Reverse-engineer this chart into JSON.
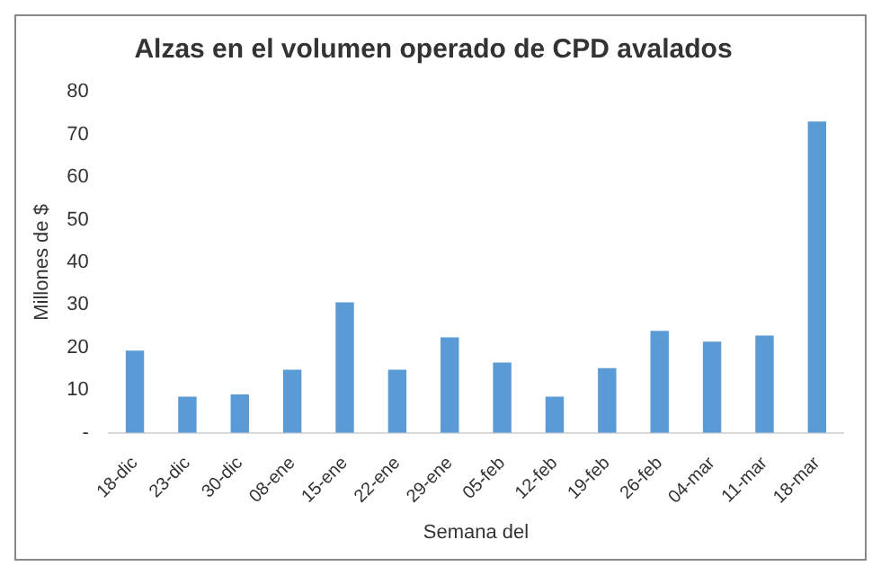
{
  "chart_data": {
    "type": "bar",
    "title": "Alzas en el volumen operado de CPD avalados",
    "xlabel": "Semana del",
    "ylabel": "Millones de $",
    "categories": [
      "18-dic",
      "23-dic",
      "30-dic",
      "08-ene",
      "15-ene",
      "22-ene",
      "29-ene",
      "05-feb",
      "12-feb",
      "19-feb",
      "26-feb",
      "04-mar",
      "11-mar",
      "18-mar"
    ],
    "values": [
      19.3,
      8.5,
      9.0,
      14.8,
      30.6,
      14.8,
      22.4,
      16.5,
      8.5,
      15.2,
      23.9,
      21.4,
      22.8,
      73.0
    ],
    "color": "#5b9bd5",
    "ylim": [
      0,
      80
    ],
    "yticks": [
      {
        "value": 0,
        "label": "-"
      },
      10,
      20,
      30,
      40,
      50,
      60,
      70,
      80
    ],
    "grid": false,
    "legend": false
  }
}
